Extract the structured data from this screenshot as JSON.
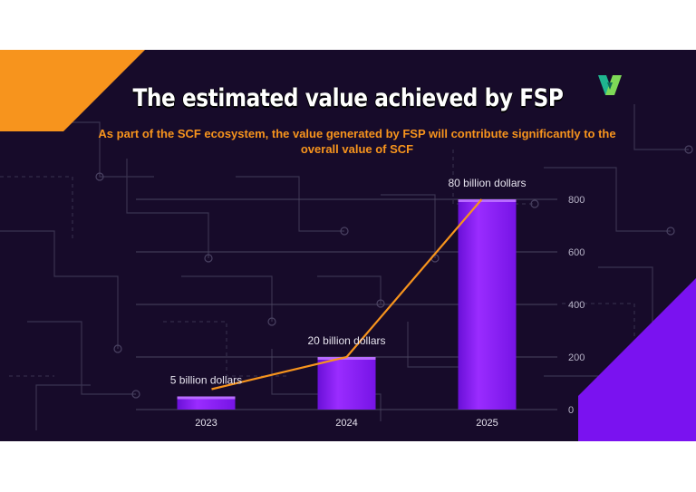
{
  "header": {
    "title": "The estimated value achieved by FSP",
    "subtitle": "As part of the SCF ecosystem, the value generated by FSP will contribute significantly to the overall value of SCF",
    "logo_icon": "fsp-logo-icon"
  },
  "colors": {
    "background": "#170b2a",
    "accent_orange": "#f7941d",
    "bar_purple": "#8a1cff",
    "corner_purple": "#7a12f0"
  },
  "chart_data": {
    "type": "bar",
    "categories": [
      "2023",
      "2024",
      "2025"
    ],
    "values": [
      50,
      200,
      800
    ],
    "data_labels": [
      "5 billion dollars",
      "20 billion dollars",
      "80 billion dollars"
    ],
    "line_overlay": [
      50,
      200,
      800
    ],
    "y_ticks": [
      0,
      200,
      400,
      600,
      800
    ],
    "ylim": [
      0,
      800
    ],
    "y_axis_position": "right",
    "grid": true,
    "legend": "none"
  }
}
